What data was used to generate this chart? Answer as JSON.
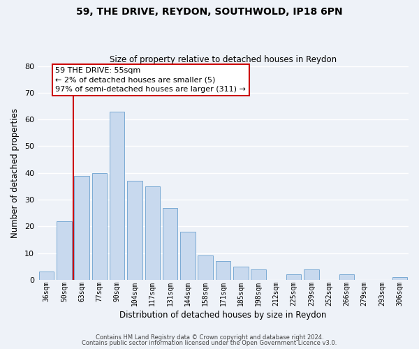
{
  "title": "59, THE DRIVE, REYDON, SOUTHWOLD, IP18 6PN",
  "subtitle": "Size of property relative to detached houses in Reydon",
  "xlabel": "Distribution of detached houses by size in Reydon",
  "ylabel": "Number of detached properties",
  "bar_color": "#c8d9ee",
  "bar_edge_color": "#7aaad4",
  "background_color": "#eef2f8",
  "grid_color": "#ffffff",
  "categories": [
    "36sqm",
    "50sqm",
    "63sqm",
    "77sqm",
    "90sqm",
    "104sqm",
    "117sqm",
    "131sqm",
    "144sqm",
    "158sqm",
    "171sqm",
    "185sqm",
    "198sqm",
    "212sqm",
    "225sqm",
    "239sqm",
    "252sqm",
    "266sqm",
    "279sqm",
    "293sqm",
    "306sqm"
  ],
  "values": [
    3,
    22,
    39,
    40,
    63,
    37,
    35,
    27,
    18,
    9,
    7,
    5,
    4,
    0,
    2,
    4,
    0,
    2,
    0,
    0,
    1
  ],
  "ylim": [
    0,
    80
  ],
  "yticks": [
    0,
    10,
    20,
    30,
    40,
    50,
    60,
    70,
    80
  ],
  "vline_color": "#cc0000",
  "annotation_text": "59 THE DRIVE: 55sqm\n← 2% of detached houses are smaller (5)\n97% of semi-detached houses are larger (311) →",
  "annotation_box_color": "#ffffff",
  "annotation_box_edge_color": "#cc0000",
  "footer1": "Contains HM Land Registry data © Crown copyright and database right 2024.",
  "footer2": "Contains public sector information licensed under the Open Government Licence v3.0."
}
